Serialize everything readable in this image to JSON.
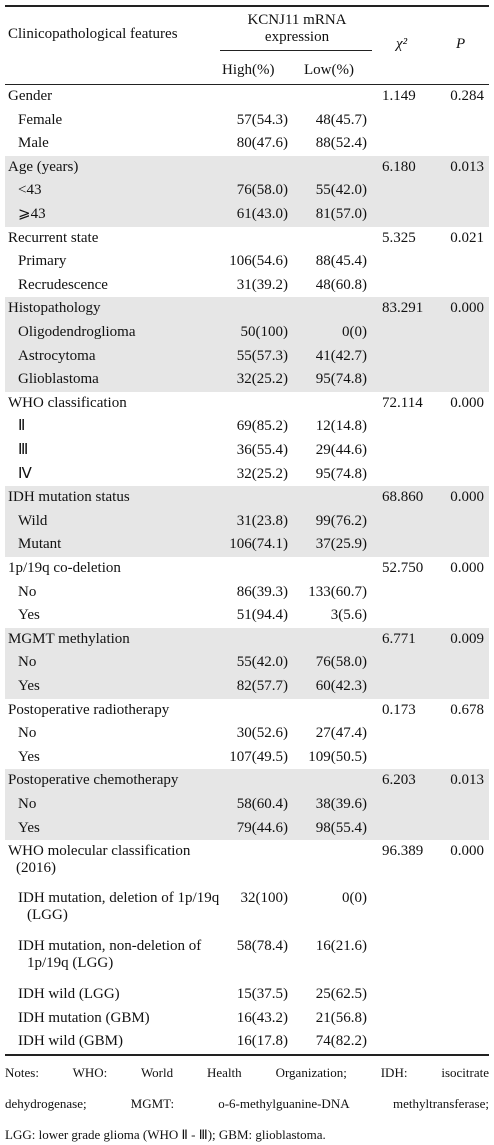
{
  "header": {
    "feature": "Clinicopathological features",
    "expression": "KCNJ11 mRNA expression",
    "high": "High(%)",
    "low": "Low(%)",
    "chi": "χ²",
    "p": "P"
  },
  "groups": [
    {
      "label": "Gender",
      "chi": "1.149",
      "p": "0.284",
      "rows": [
        {
          "label": "Female",
          "high": "57(54.3)",
          "low": "48(45.7)"
        },
        {
          "label": "Male",
          "high": "80(47.6)",
          "low": "88(52.4)"
        }
      ]
    },
    {
      "label": "Age (years)",
      "chi": "6.180",
      "p": "0.013",
      "rows": [
        {
          "label": "<43",
          "high": "76(58.0)",
          "low": "55(42.0)"
        },
        {
          "label": "⩾43",
          "high": "61(43.0)",
          "low": "81(57.0)"
        }
      ]
    },
    {
      "label": "Recurrent state",
      "chi": "5.325",
      "p": "0.021",
      "rows": [
        {
          "label": "Primary",
          "high": "106(54.6)",
          "low": "88(45.4)"
        },
        {
          "label": "Recrudescence",
          "high": "31(39.2)",
          "low": "48(60.8)"
        }
      ]
    },
    {
      "label": "Histopathology",
      "chi": "83.291",
      "p": "0.000",
      "rows": [
        {
          "label": "Oligodendroglioma",
          "high": "50(100)",
          "low": "0(0)"
        },
        {
          "label": "Astrocytoma",
          "high": "55(57.3)",
          "low": "41(42.7)"
        },
        {
          "label": "Glioblastoma",
          "high": "32(25.2)",
          "low": "95(74.8)"
        }
      ]
    },
    {
      "label": "WHO classification",
      "chi": "72.114",
      "p": "0.000",
      "rows": [
        {
          "label": "Ⅱ",
          "high": "69(85.2)",
          "low": "12(14.8)"
        },
        {
          "label": "Ⅲ",
          "high": "36(55.4)",
          "low": "29(44.6)"
        },
        {
          "label": "Ⅳ",
          "high": "32(25.2)",
          "low": "95(74.8)"
        }
      ]
    },
    {
      "label": "IDH mutation status",
      "chi": "68.860",
      "p": "0.000",
      "rows": [
        {
          "label": "Wild",
          "high": "31(23.8)",
          "low": "99(76.2)"
        },
        {
          "label": "Mutant",
          "high": "106(74.1)",
          "low": "37(25.9)"
        }
      ]
    },
    {
      "label": "1p/19q co-deletion",
      "chi": "52.750",
      "p": "0.000",
      "rows": [
        {
          "label": "No",
          "high": "86(39.3)",
          "low": "133(60.7)"
        },
        {
          "label": "Yes",
          "high": "51(94.4)",
          "low": "3(5.6)"
        }
      ]
    },
    {
      "label": "MGMT methylation",
      "chi": "6.771",
      "p": "0.009",
      "rows": [
        {
          "label": "No",
          "high": "55(42.0)",
          "low": "76(58.0)"
        },
        {
          "label": "Yes",
          "high": "82(57.7)",
          "low": "60(42.3)"
        }
      ]
    },
    {
      "label": "Postoperative radiotherapy",
      "chi": "0.173",
      "p": "0.678",
      "rows": [
        {
          "label": "No",
          "high": "30(52.6)",
          "low": "27(47.4)"
        },
        {
          "label": "Yes",
          "high": "107(49.5)",
          "low": "109(50.5)"
        }
      ]
    },
    {
      "label": "Postoperative chemotherapy",
      "chi": "6.203",
      "p": "0.013",
      "rows": [
        {
          "label": "No",
          "high": "58(60.4)",
          "low": "38(39.6)"
        },
        {
          "label": "Yes",
          "high": "79(44.6)",
          "low": "98(55.4)"
        }
      ]
    },
    {
      "label": "WHO molecular classification (2016)",
      "chi": "96.389",
      "p": "0.000",
      "rows": [
        {
          "label": "IDH mutation, deletion of 1p/19q (LGG)",
          "high": "32(100)",
          "low": "0(0)"
        },
        {
          "label": "IDH mutation, non-deletion of 1p/19q (LGG)",
          "high": "58(78.4)",
          "low": "16(21.6)"
        },
        {
          "label": "IDH wild (LGG)",
          "high": "15(37.5)",
          "low": "25(62.5)"
        },
        {
          "label": "IDH mutation (GBM)",
          "high": "16(43.2)",
          "low": "21(56.8)"
        },
        {
          "label": "IDH wild (GBM)",
          "high": "16(17.8)",
          "low": "74(82.2)"
        }
      ]
    }
  ],
  "notes": [
    "Notes: WHO: World Health Organization; IDH: isocitrate",
    "dehydrogenase; MGMT: o-6-methylguanine-DNA methyltransferase;",
    "LGG: lower grade glioma (WHO Ⅱ - Ⅲ); GBM: glioblastoma."
  ]
}
